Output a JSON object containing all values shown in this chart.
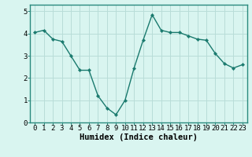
{
  "x": [
    0,
    1,
    2,
    3,
    4,
    5,
    6,
    7,
    8,
    9,
    10,
    11,
    12,
    13,
    14,
    15,
    16,
    17,
    18,
    19,
    20,
    21,
    22,
    23
  ],
  "y": [
    4.05,
    4.15,
    3.75,
    3.65,
    3.0,
    2.35,
    2.35,
    1.2,
    0.65,
    0.35,
    1.0,
    2.45,
    3.7,
    4.85,
    4.15,
    4.05,
    4.05,
    3.9,
    3.75,
    3.7,
    3.1,
    2.65,
    2.45,
    2.6
  ],
  "line_color": "#1a7a6e",
  "marker": "D",
  "marker_size": 2.2,
  "background_color": "#d9f5f0",
  "grid_color": "#b8ddd8",
  "xlabel": "Humidex (Indice chaleur)",
  "xlabel_fontsize": 7.5,
  "tick_fontsize": 6.5,
  "ylim": [
    0,
    5.3
  ],
  "xlim": [
    -0.5,
    23.5
  ],
  "yticks": [
    0,
    1,
    2,
    3,
    4,
    5
  ],
  "xticks": [
    0,
    1,
    2,
    3,
    4,
    5,
    6,
    7,
    8,
    9,
    10,
    11,
    12,
    13,
    14,
    15,
    16,
    17,
    18,
    19,
    20,
    21,
    22,
    23
  ],
  "xtick_labels": [
    "0",
    "1",
    "2",
    "3",
    "4",
    "5",
    "6",
    "7",
    "8",
    "9",
    "10",
    "11",
    "12",
    "13",
    "14",
    "15",
    "16",
    "17",
    "18",
    "19",
    "20",
    "21",
    "22",
    "23"
  ],
  "line_width": 1.0,
  "spine_color": "#2a8a7e",
  "title": ""
}
